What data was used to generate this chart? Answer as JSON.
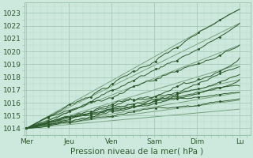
{
  "title": "",
  "xlabel": "Pression niveau de la mer( hPa )",
  "bg_color": "#cde8dc",
  "grid_major_color": "#9fc4b0",
  "grid_minor_color": "#b8d8ca",
  "line_color": "#2d5a2d",
  "straight_line_color": "#3a6e3a",
  "ylim": [
    1013.5,
    1023.8
  ],
  "xlim": [
    -0.05,
    5.25
  ],
  "yticks": [
    1014,
    1015,
    1016,
    1017,
    1018,
    1019,
    1020,
    1021,
    1022,
    1023
  ],
  "xtick_labels": [
    "Mer",
    "Jeu",
    "Ven",
    "Sam",
    "Dim",
    "Lu"
  ],
  "xtick_positions": [
    0,
    1,
    2,
    3,
    4,
    5
  ],
  "xlabel_fontsize": 7.5,
  "tick_fontsize": 6.5
}
